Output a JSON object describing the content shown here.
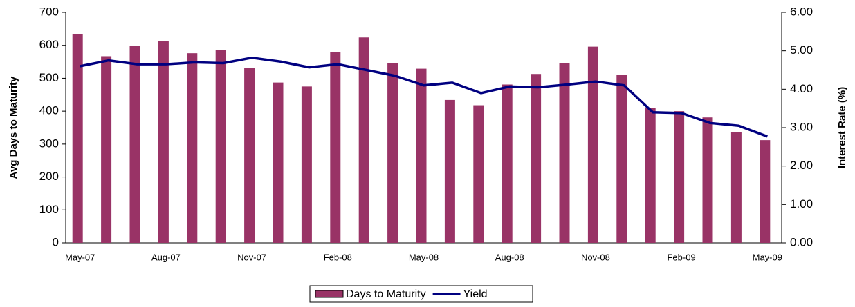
{
  "chart_data": {
    "type": "bar_line",
    "categories": [
      "May-07",
      null,
      null,
      "Aug-07",
      null,
      null,
      "Nov-07",
      null,
      null,
      "Feb-08",
      null,
      null,
      "May-08",
      null,
      null,
      "Aug-08",
      null,
      null,
      "Nov-08",
      null,
      null,
      "Feb-09",
      null,
      null,
      "May-09"
    ],
    "series": [
      {
        "name": "Days to Maturity",
        "type": "bar",
        "color": "#993366",
        "values": [
          633,
          567,
          598,
          614,
          576,
          586,
          531,
          487,
          475,
          580,
          624,
          545,
          529,
          434,
          418,
          481,
          513,
          545,
          596,
          510,
          410,
          400,
          381,
          337,
          312
        ]
      },
      {
        "name": "Yield",
        "type": "line",
        "axis": "y2",
        "color": "#000080",
        "values": [
          4.6,
          4.75,
          4.65,
          4.65,
          4.7,
          4.68,
          4.82,
          4.72,
          4.57,
          4.65,
          4.5,
          4.35,
          4.1,
          4.17,
          3.9,
          4.07,
          4.05,
          4.12,
          4.2,
          4.1,
          3.4,
          3.38,
          3.12,
          3.05,
          2.77
        ]
      }
    ],
    "ylabel": "Avg Days to Maturity",
    "y2label": "Interest Rate (%)",
    "ylim": [
      0,
      700
    ],
    "yticks": [
      0,
      100,
      200,
      300,
      400,
      500,
      600,
      700
    ],
    "y2lim": [
      0,
      6
    ],
    "y2ticks": [
      {
        "value": 0,
        "label": "0.00"
      },
      {
        "value": 1,
        "label": "1.00"
      },
      {
        "value": 2,
        "label": "2.00"
      },
      {
        "value": 3,
        "label": "3.00"
      },
      {
        "value": 4,
        "label": "4.00"
      },
      {
        "value": 5,
        "label": "5.00"
      },
      {
        "value": 6,
        "label": "6.00"
      }
    ],
    "legend": "bottom",
    "grid": false
  }
}
